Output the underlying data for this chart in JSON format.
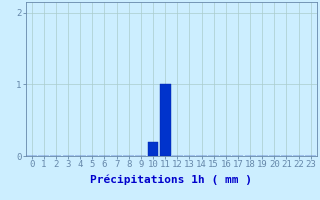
{
  "hours": [
    0,
    1,
    2,
    3,
    4,
    5,
    6,
    7,
    8,
    9,
    10,
    11,
    12,
    13,
    14,
    15,
    16,
    17,
    18,
    19,
    20,
    21,
    22,
    23
  ],
  "values": [
    0,
    0,
    0,
    0,
    0,
    0,
    0,
    0,
    0,
    0,
    0.2,
    1.0,
    0,
    0,
    0,
    0,
    0,
    0,
    0,
    0,
    0,
    0,
    0,
    0
  ],
  "bar_color": "#0033cc",
  "bar_edge_color": "#0022aa",
  "background_color": "#cceeff",
  "grid_color": "#aacccc",
  "axis_color": "#6688aa",
  "tick_label_color": "#0000cc",
  "xlabel": "Précipitations 1h ( mm )",
  "xlabel_color": "#0000cc",
  "yticks": [
    0,
    1,
    2
  ],
  "ylim": [
    0,
    2.15
  ],
  "xlim": [
    -0.5,
    23.5
  ],
  "xlabel_fontsize": 8,
  "tick_fontsize": 6.5
}
